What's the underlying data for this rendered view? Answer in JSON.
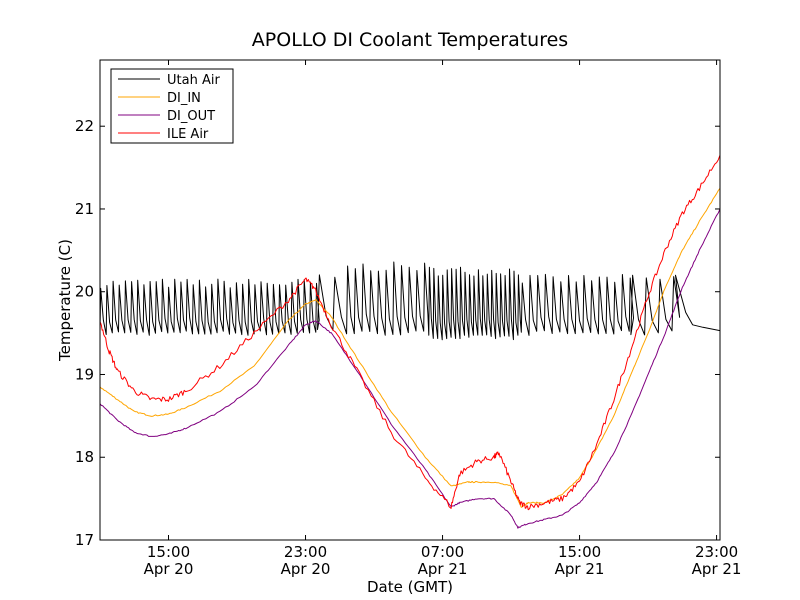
{
  "chart_data": {
    "type": "line",
    "title": "APOLLO DI Coolant Temperatures",
    "xlabel": "Date (GMT)",
    "ylabel": "Temperature (C)",
    "x_unit": "hours since Apr 20 11:00 GMT",
    "xlim": [
      0,
      36.2
    ],
    "ylim": [
      17,
      22.8
    ],
    "grid": false,
    "legend_position": "top-left",
    "x_ticks": [
      {
        "x": 4,
        "time": "15:00",
        "date": "Apr 20"
      },
      {
        "x": 12,
        "time": "23:00",
        "date": "Apr 20"
      },
      {
        "x": 20,
        "time": "07:00",
        "date": "Apr 21"
      },
      {
        "x": 28,
        "time": "15:00",
        "date": "Apr 21"
      },
      {
        "x": 36,
        "time": "23:00",
        "date": "Apr 21"
      }
    ],
    "y_ticks": [
      {
        "value": 17,
        "label": "17"
      },
      {
        "value": 18,
        "label": "18"
      },
      {
        "value": 19,
        "label": "19"
      },
      {
        "value": 20,
        "label": "20"
      },
      {
        "value": 21,
        "label": "21"
      },
      {
        "value": 22,
        "label": "22"
      }
    ],
    "series": [
      {
        "name": "Utah Air",
        "color": "#000000",
        "pattern": "sawtooth",
        "segments": [
          {
            "x0": 0,
            "x1": 12.7,
            "period": 0.36,
            "low": 19.5,
            "high": 20.1
          },
          {
            "x0": 12.7,
            "x1": 14.4,
            "period": 0.9,
            "low": 19.55,
            "high": 20.15
          },
          {
            "x0": 14.4,
            "x1": 19.2,
            "period": 0.45,
            "low": 19.5,
            "high": 20.3
          },
          {
            "x0": 19.2,
            "x1": 24.6,
            "period": 0.26,
            "low": 19.45,
            "high": 20.25
          },
          {
            "x0": 24.6,
            "x1": 31.0,
            "period": 0.45,
            "low": 19.5,
            "high": 20.15
          },
          {
            "x0": 31.0,
            "x1": 33.6,
            "period": 0.8,
            "low": 19.5,
            "high": 20.15
          }
        ],
        "tail": {
          "x": [
            33.6,
            34.2,
            34.6,
            35.2,
            36.2
          ],
          "y": [
            20.2,
            19.75,
            19.6,
            19.57,
            19.53
          ]
        }
      },
      {
        "name": "DI_IN",
        "color": "#ffa500",
        "x": [
          0,
          1,
          2,
          3,
          4,
          5,
          7,
          9,
          11,
          12,
          12.6,
          13.5,
          15,
          17,
          19,
          20.5,
          21.5,
          22,
          23,
          24,
          24.6,
          25,
          26,
          27,
          28,
          29,
          30,
          31,
          32,
          33,
          34,
          35,
          36.2
        ],
        "y": [
          18.85,
          18.7,
          18.55,
          18.5,
          18.52,
          18.6,
          18.8,
          19.1,
          19.65,
          19.85,
          19.9,
          19.7,
          19.2,
          18.55,
          18.0,
          17.65,
          17.7,
          17.7,
          17.7,
          17.65,
          17.4,
          17.45,
          17.45,
          17.55,
          17.75,
          18.1,
          18.5,
          19.0,
          19.5,
          20.05,
          20.5,
          20.85,
          21.25
        ]
      },
      {
        "name": "DI_OUT",
        "color": "#800080",
        "x": [
          0,
          1,
          2,
          3,
          4,
          5,
          7,
          9,
          11,
          12,
          12.6,
          13.5,
          15,
          17,
          19,
          20.5,
          21,
          22,
          23,
          24,
          24.4,
          25,
          26,
          27,
          28,
          29,
          30,
          31,
          32,
          33,
          34,
          35,
          36.2
        ],
        "y": [
          18.65,
          18.45,
          18.3,
          18.25,
          18.28,
          18.35,
          18.55,
          18.85,
          19.35,
          19.6,
          19.65,
          19.5,
          19.05,
          18.4,
          17.85,
          17.4,
          17.45,
          17.5,
          17.5,
          17.3,
          17.15,
          17.2,
          17.25,
          17.3,
          17.45,
          17.7,
          18.05,
          18.5,
          19.0,
          19.5,
          20.05,
          20.5,
          21.0
        ]
      },
      {
        "name": "ILE Air",
        "color": "#ff0000",
        "x": [
          0,
          0.5,
          1,
          2,
          3,
          4,
          5,
          7,
          9,
          11,
          12,
          12.5,
          13.5,
          15,
          17,
          19,
          20.5,
          21,
          22,
          23,
          23.3,
          24,
          24.5,
          25,
          26,
          27,
          28,
          29,
          30,
          31,
          32,
          33,
          34,
          35,
          36.2
        ],
        "y": [
          19.65,
          19.3,
          19.05,
          18.8,
          18.7,
          18.7,
          18.8,
          19.1,
          19.5,
          19.9,
          20.15,
          20.05,
          19.6,
          19.05,
          18.3,
          17.75,
          17.4,
          17.8,
          17.95,
          18.0,
          18.05,
          17.7,
          17.45,
          17.4,
          17.45,
          17.5,
          17.7,
          18.15,
          18.7,
          19.3,
          19.95,
          20.5,
          20.95,
          21.25,
          21.65
        ]
      }
    ]
  }
}
